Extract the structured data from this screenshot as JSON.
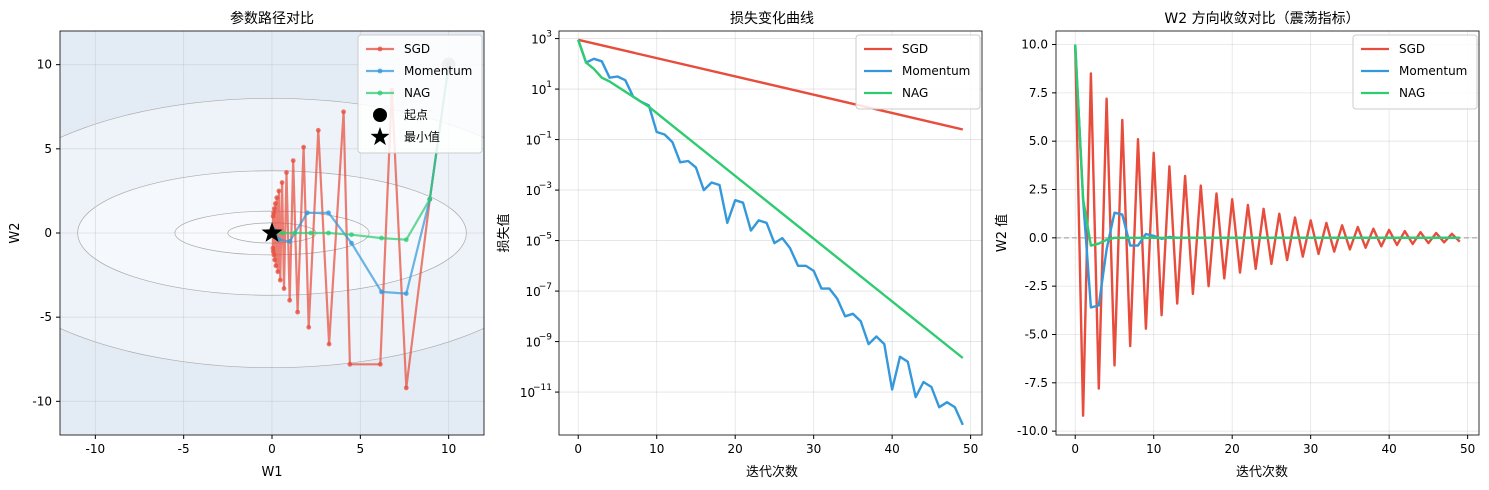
{
  "chart_data": [
    {
      "type": "line",
      "title": "参数路径对比",
      "xlabel": "W1",
      "ylabel": "W2",
      "xlim": [
        -12,
        12
      ],
      "ylim": [
        -12,
        12
      ],
      "xticks": [
        -10,
        -5,
        0,
        5,
        10
      ],
      "yticks": [
        -10,
        -5,
        0,
        5,
        10
      ],
      "grid": true,
      "legend_position": "top-right",
      "contour_levels": [
        {
          "a": 2.5,
          "b": 0.6
        },
        {
          "a": 5.5,
          "b": 1.3
        },
        {
          "a": 11,
          "b": 3.7
        },
        {
          "a": 17,
          "b": 8
        }
      ],
      "series": [
        {
          "name": "SGD",
          "color": "#e74c3c",
          "x": [
            10,
            8.93,
            7.6,
            6.78,
            6.13,
            4.41,
            4.05,
            3.23,
            2.62,
            2.08,
            1.79,
            1.45,
            1.2,
            1.0,
            0.82,
            0.68,
            0.57,
            0.47,
            0.39,
            0.33,
            0.27,
            0.22,
            0.19,
            0.15,
            0.13,
            0.11,
            0.09,
            0.07,
            0.06,
            0.05
          ],
          "y": [
            10,
            2.0,
            -9.2,
            8.5,
            -7.8,
            -7.8,
            7.2,
            -6.6,
            6.1,
            -5.6,
            5.1,
            -4.7,
            4.3,
            -4.0,
            3.6,
            -3.3,
            3.0,
            -2.8,
            2.5,
            -2.3,
            2.1,
            -1.95,
            1.75,
            -1.6,
            1.45,
            -1.3,
            1.2,
            -1.1,
            1.0,
            -0.9
          ]
        },
        {
          "name": "Momentum",
          "color": "#3498db",
          "x": [
            10,
            8.93,
            7.6,
            6.2,
            4.5,
            3.2,
            2.0,
            1.0,
            0.4,
            0.1,
            0.0
          ],
          "y": [
            10,
            2.0,
            -3.6,
            -3.5,
            -0.6,
            1.2,
            1.2,
            -0.5,
            -0.4,
            0.2,
            0.0
          ]
        },
        {
          "name": "NAG",
          "color": "#2ecc71",
          "x": [
            10,
            8.93,
            7.6,
            6.2,
            4.5,
            3.2,
            2.2,
            1.3,
            0.6,
            0.2,
            0.0
          ],
          "y": [
            10,
            2.0,
            -0.4,
            -0.3,
            -0.1,
            0.0,
            0.0,
            0.0,
            0.0,
            0.0,
            0.0
          ]
        }
      ],
      "markers": [
        {
          "name": "起点",
          "x": 10,
          "y": 10,
          "shape": "circle"
        },
        {
          "name": "最小值",
          "x": 0,
          "y": 0,
          "shape": "star"
        }
      ]
    },
    {
      "type": "line",
      "title": "损失变化曲线",
      "xlabel": "迭代次数",
      "ylabel": "损失值",
      "yscale": "log",
      "xlim": [
        -2.45,
        51.45
      ],
      "ylim_log10": [
        -12.7,
        3.3
      ],
      "xticks": [
        0,
        10,
        20,
        30,
        40,
        50
      ],
      "yticks": [
        {
          "base": "10",
          "exp": "3",
          "log": 3
        },
        {
          "base": "10",
          "exp": "1",
          "log": 1
        },
        {
          "base": "10",
          "exp": "−1",
          "log": -1
        },
        {
          "base": "10",
          "exp": "−3",
          "log": -3
        },
        {
          "base": "10",
          "exp": "−5",
          "log": -5
        },
        {
          "base": "10",
          "exp": "−7",
          "log": -7
        },
        {
          "base": "10",
          "exp": "−9",
          "log": -9
        },
        {
          "base": "10",
          "exp": "−11",
          "log": -11
        }
      ],
      "grid": true,
      "legend_position": "top-right",
      "series": [
        {
          "name": "SGD",
          "color": "#e74c3c",
          "x": [
            0,
            49
          ],
          "log10_y": [
            2.95,
            -0.6
          ]
        },
        {
          "name": "Momentum",
          "color": "#3498db",
          "x": [
            0,
            1,
            2,
            3,
            4,
            5,
            6,
            7,
            8,
            9,
            10,
            11,
            12,
            13,
            14,
            15,
            16,
            17,
            18,
            19,
            20,
            21,
            22,
            23,
            24,
            25,
            26,
            27,
            28,
            29,
            30,
            31,
            32,
            33,
            34,
            35,
            36,
            37,
            38,
            39,
            40,
            41,
            42,
            43,
            44,
            45,
            46,
            47,
            48,
            49
          ],
          "log10_y": [
            2.95,
            2.05,
            2.2,
            2.1,
            1.45,
            1.5,
            1.35,
            0.7,
            0.5,
            0.35,
            -0.7,
            -0.8,
            -1.1,
            -1.9,
            -1.85,
            -2.1,
            -3.0,
            -2.7,
            -2.8,
            -4.3,
            -3.4,
            -3.5,
            -4.6,
            -4.2,
            -4.3,
            -5.1,
            -4.9,
            -5.3,
            -6.0,
            -6.0,
            -6.2,
            -6.9,
            -6.9,
            -7.3,
            -8.0,
            -7.9,
            -8.2,
            -9.1,
            -8.8,
            -9.1,
            -10.9,
            -9.6,
            -9.8,
            -11.2,
            -10.6,
            -10.8,
            -11.6,
            -11.4,
            -11.6,
            -12.3
          ]
        },
        {
          "name": "NAG",
          "color": "#2ecc71",
          "x": [
            0,
            1,
            2,
            3,
            4,
            5,
            6,
            7,
            8,
            9,
            10,
            49
          ],
          "log10_y": [
            2.95,
            2.05,
            1.8,
            1.45,
            1.3,
            1.1,
            0.9,
            0.7,
            0.5,
            0.3,
            0.05,
            -9.65
          ]
        }
      ]
    },
    {
      "type": "line",
      "title": "W2 方向收敛对比（震荡指标）",
      "xlabel": "迭代次数",
      "ylabel": "W2 值",
      "xlim": [
        -2.45,
        51.45
      ],
      "ylim": [
        -10.2,
        10.7
      ],
      "xticks": [
        0,
        10,
        20,
        30,
        40,
        50
      ],
      "yticks": [
        "10.0",
        "7.5",
        "5.0",
        "2.5",
        "0.0",
        "-2.5",
        "-5.0",
        "-7.5",
        "-10.0"
      ],
      "ytick_values": [
        10,
        7.5,
        5,
        2.5,
        0,
        -2.5,
        -5,
        -7.5,
        -10
      ],
      "grid": true,
      "reference_line_y": 0,
      "legend_position": "top-right",
      "series": [
        {
          "name": "SGD",
          "color": "#e74c3c",
          "y": [
            10,
            -9.2,
            8.5,
            -7.8,
            7.2,
            -6.6,
            6.1,
            -5.6,
            5.1,
            -4.7,
            4.4,
            -4.0,
            3.7,
            -3.4,
            3.2,
            -2.9,
            2.7,
            -2.5,
            2.3,
            -2.1,
            2.0,
            -1.8,
            1.7,
            -1.6,
            1.5,
            -1.35,
            1.25,
            -1.15,
            1.05,
            -0.97,
            0.9,
            -0.83,
            0.77,
            -0.71,
            0.65,
            -0.6,
            0.56,
            -0.51,
            0.47,
            -0.44,
            0.41,
            -0.37,
            0.35,
            -0.32,
            0.29,
            -0.27,
            0.25,
            -0.23,
            0.21,
            -0.2
          ]
        },
        {
          "name": "Momentum",
          "color": "#3498db",
          "y": [
            10,
            2.0,
            -3.6,
            -3.5,
            -0.6,
            1.3,
            1.2,
            -0.4,
            -0.4,
            0.2,
            0.1,
            -0.05,
            0.05,
            0,
            0,
            0,
            0,
            0,
            0,
            0,
            0,
            0,
            0,
            0,
            0,
            0,
            0,
            0,
            0,
            0,
            0,
            0,
            0,
            0,
            0,
            0,
            0,
            0,
            0,
            0,
            0,
            0,
            0,
            0,
            0,
            0,
            0,
            0,
            0,
            0
          ]
        },
        {
          "name": "NAG",
          "color": "#2ecc71",
          "y": [
            10,
            2.0,
            -0.4,
            -0.3,
            -0.1,
            0,
            0,
            0,
            0,
            0,
            0,
            0,
            0,
            0,
            0,
            0,
            0,
            0,
            0,
            0,
            0,
            0,
            0,
            0,
            0,
            0,
            0,
            0,
            0,
            0,
            0,
            0,
            0,
            0,
            0,
            0,
            0,
            0,
            0,
            0,
            0,
            0,
            0,
            0,
            0,
            0,
            0,
            0,
            0,
            0
          ]
        }
      ]
    }
  ]
}
